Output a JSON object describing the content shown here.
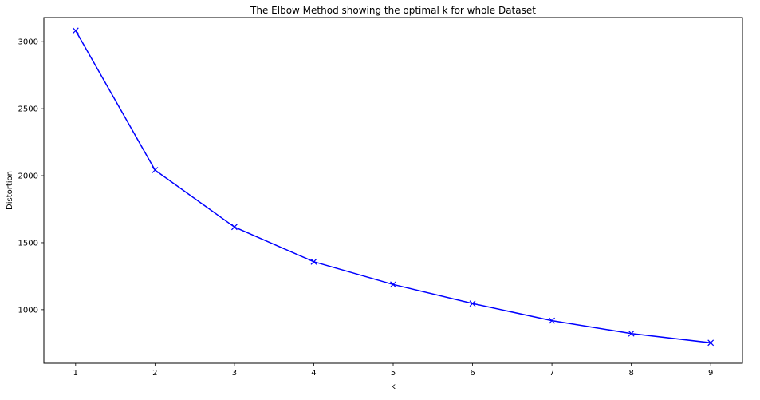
{
  "chart_data": {
    "type": "line",
    "title": "The Elbow Method showing the optimal k for whole Dataset",
    "xlabel": "k",
    "ylabel": "Distortion",
    "x": [
      1,
      2,
      3,
      4,
      5,
      6,
      7,
      8,
      9
    ],
    "series": [
      {
        "values": [
          3083,
          2042,
          1617,
          1358,
          1188,
          1046,
          918,
          822,
          753
        ],
        "color": "#0000ff",
        "marker": "x"
      }
    ],
    "xlim": [
      0.6,
      9.4
    ],
    "ylim": [
      600,
      3180
    ],
    "xticks": [
      1,
      2,
      3,
      4,
      5,
      6,
      7,
      8,
      9
    ],
    "yticks": [
      1000,
      1500,
      2000,
      2500,
      3000
    ],
    "grid": false,
    "legend": "none"
  }
}
